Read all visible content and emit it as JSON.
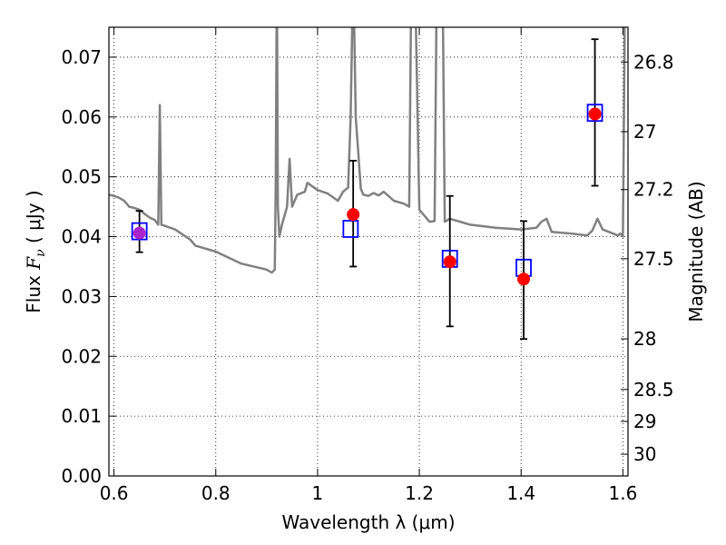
{
  "chart_data": {
    "type": "scatter",
    "xlabel": "Wavelength  λ (μm)",
    "ylabel": "Flux  F_ν  ( μJy )",
    "ylabel_parts": {
      "prefix": "Flux  ",
      "symbol": "F",
      "subscript": "ν",
      "suffix": "  ( μJy )"
    },
    "y2label": "Magnitude (AB)",
    "xlim": [
      0.59,
      1.61
    ],
    "ylim": [
      0.0,
      0.075
    ],
    "grid": true,
    "x_ticks": [
      0.6,
      0.8,
      1.0,
      1.2,
      1.4,
      1.6
    ],
    "x_tick_labels": [
      "0.6",
      "0.8",
      "1",
      "1.2",
      "1.4",
      "1.6"
    ],
    "y_ticks": [
      0.0,
      0.01,
      0.02,
      0.03,
      0.04,
      0.05,
      0.06,
      0.07
    ],
    "y_tick_labels": [
      "0.00",
      "0.01",
      "0.02",
      "0.03",
      "0.04",
      "0.05",
      "0.06",
      "0.07"
    ],
    "y2_ticks": [
      26.8,
      27.0,
      27.2,
      27.5,
      28.0,
      28.5,
      29.0,
      30.0
    ],
    "y2_tick_labels": [
      "26.8",
      "27",
      "27.2",
      "27.5",
      "28",
      "28.5",
      "29",
      "30"
    ],
    "colors": {
      "model": "#808080",
      "observed": "#ff0000",
      "observed_first": "#aa22cc",
      "model_box": "#0000ff",
      "errorbar": "#000000"
    },
    "series": [
      {
        "role": "observed-photometry",
        "marker": "circle",
        "x": [
          0.65,
          1.07,
          1.26,
          1.405,
          1.545
        ],
        "y": [
          0.0406,
          0.0437,
          0.0358,
          0.0329,
          0.0605
        ],
        "yerr_low": [
          0.0032,
          0.0087,
          0.0108,
          0.01,
          0.012
        ],
        "yerr_high": [
          0.0037,
          0.009,
          0.011,
          0.0097,
          0.0125
        ]
      },
      {
        "role": "model-photometry",
        "marker": "square",
        "x": [
          0.65,
          1.065,
          1.26,
          1.405,
          1.545
        ],
        "y": [
          0.0409,
          0.0413,
          0.0363,
          0.0348,
          0.0607
        ]
      },
      {
        "role": "model-spectrum",
        "marker": "line",
        "x": [
          0.59,
          0.6,
          0.61,
          0.62,
          0.63,
          0.64,
          0.65,
          0.66,
          0.67,
          0.68,
          0.687,
          0.69,
          0.693,
          0.7,
          0.72,
          0.75,
          0.76,
          0.8,
          0.85,
          0.9,
          0.91,
          0.916,
          0.918,
          0.92,
          0.922,
          0.925,
          0.93,
          0.94,
          0.945,
          0.95,
          0.96,
          0.975,
          0.98,
          1.0,
          1.02,
          1.04,
          1.05,
          1.06,
          1.065,
          1.07,
          1.075,
          1.085,
          1.09,
          1.1,
          1.11,
          1.12,
          1.13,
          1.15,
          1.17,
          1.18,
          1.185,
          1.19,
          1.2,
          1.21,
          1.215,
          1.22,
          1.23,
          1.235,
          1.245,
          1.25,
          1.26,
          1.3,
          1.35,
          1.4,
          1.43,
          1.44,
          1.45,
          1.46,
          1.5,
          1.53,
          1.54,
          1.55,
          1.56,
          1.59,
          1.595,
          1.6,
          1.605,
          1.61
        ],
        "y": [
          0.047,
          0.0468,
          0.0465,
          0.046,
          0.045,
          0.0448,
          0.0445,
          0.0438,
          0.0432,
          0.0428,
          0.042,
          0.062,
          0.042,
          0.0418,
          0.0412,
          0.0395,
          0.0385,
          0.0375,
          0.0355,
          0.0345,
          0.034,
          0.0345,
          0.05,
          0.085,
          0.045,
          0.04,
          0.042,
          0.045,
          0.053,
          0.045,
          0.047,
          0.0475,
          0.049,
          0.0478,
          0.0472,
          0.046,
          0.0475,
          0.0482,
          0.06,
          0.085,
          0.06,
          0.048,
          0.047,
          0.0468,
          0.0473,
          0.0469,
          0.0475,
          0.046,
          0.0455,
          0.045,
          0.09,
          0.09,
          0.0445,
          0.0435,
          0.043,
          0.0425,
          0.0426,
          0.09,
          0.09,
          0.0425,
          0.043,
          0.042,
          0.0415,
          0.0412,
          0.0415,
          0.0425,
          0.043,
          0.0408,
          0.0405,
          0.0402,
          0.041,
          0.043,
          0.0412,
          0.0402,
          0.0405,
          0.04,
          0.09,
          0.09
        ]
      }
    ]
  }
}
